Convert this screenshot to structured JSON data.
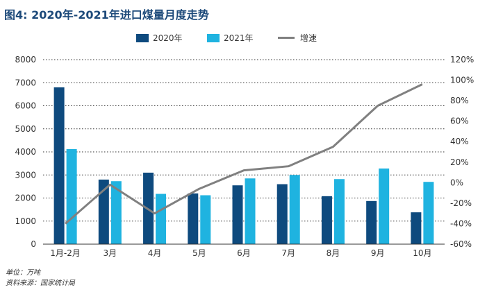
{
  "title": "图4: 2020年-2021年进口煤量月度走势",
  "footer": {
    "unit": "单位：万吨",
    "source": "资料来源：国家统计局"
  },
  "colors": {
    "s2020": "#0e4a7e",
    "s2021": "#1fb3e0",
    "growth": "#808080",
    "text": "#333333",
    "grid": "#333333"
  },
  "chart_data": {
    "type": "bar",
    "categories": [
      "1月-2月",
      "3月",
      "4月",
      "5月",
      "6月",
      "7月",
      "8月",
      "9月",
      "10月"
    ],
    "series": [
      {
        "name": "2020年",
        "type": "bar",
        "axis": "left",
        "values": [
          6800,
          2800,
          3100,
          2200,
          2550,
          2600,
          2080,
          1870,
          1380
        ]
      },
      {
        "name": "2021年",
        "type": "bar",
        "axis": "left",
        "values": [
          4120,
          2730,
          2180,
          2120,
          2850,
          3000,
          2820,
          3280,
          2700
        ]
      },
      {
        "name": "增速",
        "type": "line",
        "axis": "right",
        "values": [
          -40,
          -2,
          -30,
          -6,
          12,
          16,
          35,
          75,
          96
        ]
      }
    ],
    "ylim": [
      0,
      8000
    ],
    "yticks": [
      "0",
      "1000",
      "2000",
      "3000",
      "4000",
      "5000",
      "6000",
      "7000",
      "8000"
    ],
    "y2lim": [
      -60,
      120
    ],
    "y2ticks": [
      "-60%",
      "-40%",
      "-20%",
      "0%",
      "20%",
      "40%",
      "60%",
      "80%",
      "100%",
      "120%"
    ],
    "grid": true,
    "legend": "top"
  }
}
